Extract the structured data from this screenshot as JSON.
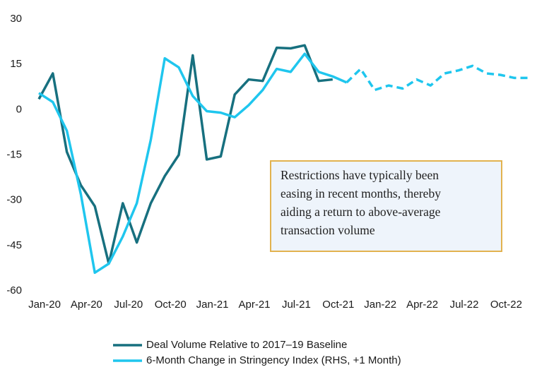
{
  "chart_data": {
    "type": "line",
    "categories": [
      "Jan-20",
      null,
      null,
      "Apr-20",
      null,
      null,
      "Jul-20",
      null,
      null,
      "Oct-20",
      null,
      null,
      "Jan-21",
      null,
      null,
      "Apr-21",
      null,
      null,
      "Jul-21",
      null,
      null,
      "Oct-21",
      null,
      null,
      "Jan-22",
      null,
      null,
      "Apr-22",
      null,
      null,
      "Jul-22",
      null,
      null,
      "Oct-22",
      null,
      null
    ],
    "series": [
      {
        "name": "Deal Volume Relative to 2017–19 Baseline",
        "color": "#17707f",
        "values": [
          3.5,
          12,
          -14,
          -25,
          -32,
          -51,
          -31,
          -44,
          -31,
          -22,
          -15,
          18,
          -16.5,
          -15.5,
          5,
          10,
          9.5,
          20.5,
          20.3,
          21.3,
          9.5,
          10,
          null,
          null,
          null,
          null,
          null,
          null,
          null,
          null,
          null,
          null,
          null,
          null,
          null,
          null
        ]
      },
      {
        "name": "6-Month Change in Stringency Index (RHS, +1 Month)",
        "color": "#1fc6ee",
        "dashed_from": 22,
        "values": [
          5.5,
          2.5,
          -7,
          -28,
          -54,
          -51,
          -42,
          -31,
          -10,
          17,
          14,
          4.5,
          -0.5,
          -1,
          -2.5,
          1.5,
          6.5,
          13.5,
          12.5,
          18.5,
          12.5,
          11,
          9,
          13.5,
          6.5,
          8,
          7,
          10,
          8,
          12,
          13,
          14.5,
          12,
          11.5,
          10.5,
          10.5
        ]
      }
    ],
    "ylim": [
      -60,
      30
    ],
    "yticks": [
      -60,
      -45,
      -30,
      -15,
      0,
      15,
      30
    ],
    "annotation": [
      "Restrictions have typically been",
      "easing in recent months, thereby",
      "aiding a return to above-average",
      "transaction volume"
    ]
  }
}
